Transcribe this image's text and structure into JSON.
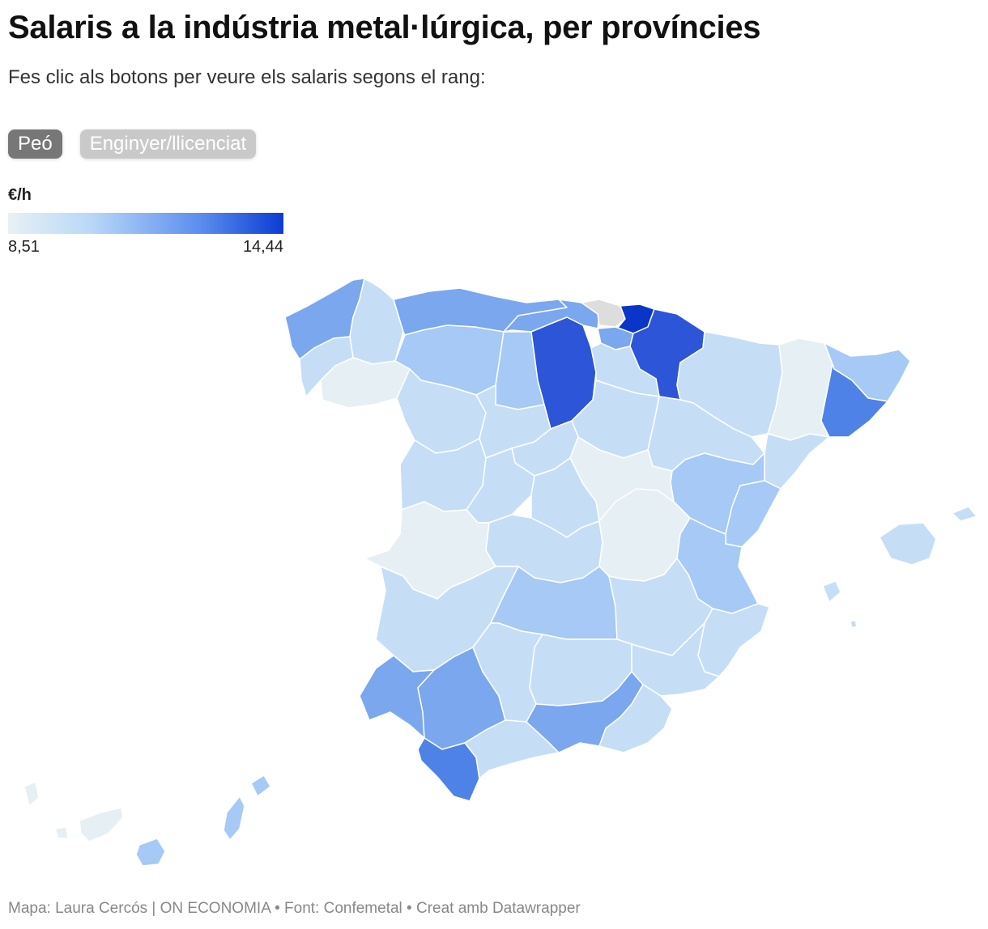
{
  "title": "Salaris a la indústria metal·lúrgica, per províncies",
  "subtitle": "Fes clic als botons per veure els salaris segons el rang:",
  "buttons": [
    {
      "label": "Peó",
      "active": true
    },
    {
      "label": "Enginyer/llicenciat",
      "active": false
    }
  ],
  "legend": {
    "title": "€/h",
    "min": "8,51",
    "max": "14,44",
    "colors": [
      "#e8f0f5",
      "#b9d8f7",
      "#5b8def",
      "#0b3cd3"
    ]
  },
  "map_colors": {
    "palest": "#e6eff3",
    "pale": "#c5def6",
    "light": "#a6c9f5",
    "mid": "#7aa7ee",
    "strong": "#4f82e6",
    "dark": "#2d55d8",
    "darkest": "#0a35c9",
    "nodata": "#dddddd"
  },
  "footer": "Mapa: Laura Cercós | ON ECONOMIA • Font: Confemetal • Creat amb Datawrapper"
}
